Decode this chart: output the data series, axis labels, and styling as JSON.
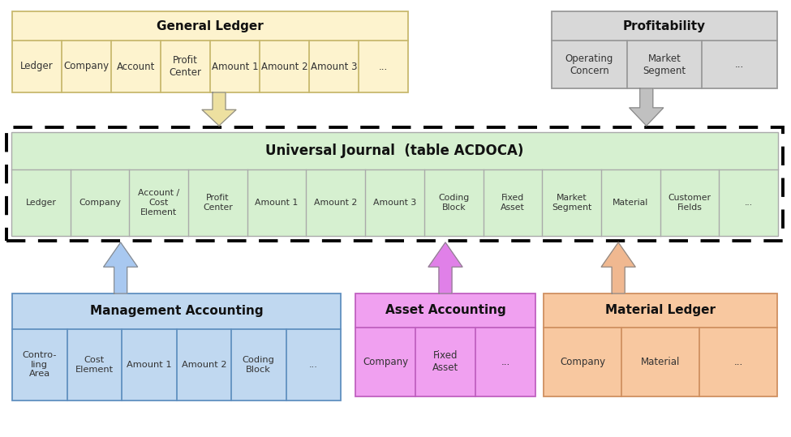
{
  "bg_color": "#ffffff",
  "gl_color": "#fdf3ce",
  "gl_border": "#c8b96e",
  "gl_title": "General Ledger",
  "gl_columns": [
    "Ledger",
    "Company",
    "Account",
    "Profit\nCenter",
    "Amount 1",
    "Amount 2",
    "Amount 3",
    "..."
  ],
  "prof_color": "#d8d8d8",
  "prof_border": "#999999",
  "prof_title": "Profitability",
  "prof_columns": [
    "Operating\nConcern",
    "Market\nSegment",
    "..."
  ],
  "uj_color": "#d6f0d0",
  "uj_border": "#000000",
  "uj_title": "Universal Journal  (table ACDOCA)",
  "uj_columns": [
    "Ledger",
    "Company",
    "Account /\nCost\nElement",
    "Profit\nCenter",
    "Amount 1",
    "Amount 2",
    "Amount 3",
    "Coding\nBlock",
    "Fixed\nAsset",
    "Market\nSegment",
    "Material",
    "Customer\nFields",
    "..."
  ],
  "ma_color": "#c0d8f0",
  "ma_border": "#6090c0",
  "ma_title": "Management Accounting",
  "ma_columns": [
    "Contro-\nling\nArea",
    "Cost\nElement",
    "Amount 1",
    "Amount 2",
    "Coding\nBlock",
    "..."
  ],
  "aa_color": "#f0a0f0",
  "aa_border": "#c060c0",
  "aa_title": "Asset Accounting",
  "aa_columns": [
    "Company",
    "Fixed\nAsset",
    "..."
  ],
  "ml_color": "#f8c8a0",
  "ml_border": "#d09060",
  "ml_title": "Material Ledger",
  "ml_columns": [
    "Company",
    "Material",
    "..."
  ],
  "arrow_down_gl_color": "#ede0a0",
  "arrow_down_prof_color": "#c0c0c0",
  "arrow_up_ma_color": "#a8c8f0",
  "arrow_up_aa_color": "#e080e8",
  "arrow_up_ml_color": "#f0b890"
}
